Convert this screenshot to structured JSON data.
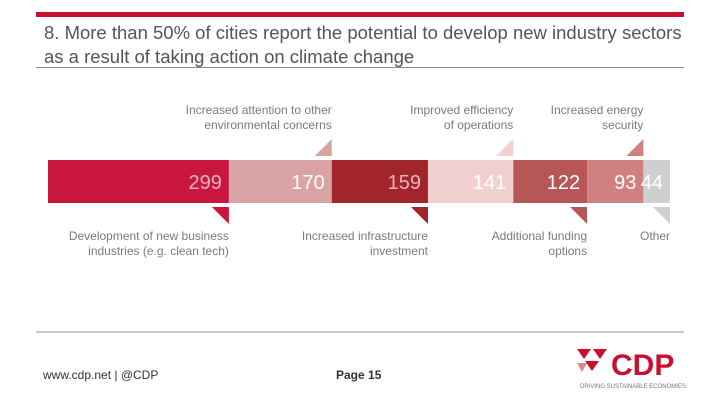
{
  "slide": {
    "title": "8. More than 50% of cities report the potential to develop new industry sectors as a result of taking action on climate change",
    "footer_left": "www.cdp.net | @CDP",
    "page_label": "Page 15",
    "logo": {
      "text": "CDP",
      "tagline": "DRIVING SUSTAINABLE ECONOMIES"
    }
  },
  "colors": {
    "brand": "#c8102e",
    "label": "#7a7a7a",
    "rule": "#c9c9c9"
  },
  "chart_data": {
    "type": "bar",
    "orientation": "horizontal-stacked",
    "categories": [
      "Development of new business industries (e.g. clean tech)",
      "Increased attention to other environmental concerns",
      "Increased infrastructure investment",
      "Improved efficiency of operations",
      "Additional funding options",
      "Increased energy security",
      "Other"
    ],
    "label_lines": [
      [
        "Development of new business",
        "industries (e.g. clean tech)"
      ],
      [
        "Increased attention to other",
        "environmental concerns"
      ],
      [
        "Increased infrastructure",
        "investment"
      ],
      [
        "Improved efficiency",
        "of operations"
      ],
      [
        "Additional funding",
        "options"
      ],
      [
        "Increased energy",
        "security"
      ],
      [
        "Other"
      ]
    ],
    "label_position": [
      "below",
      "above",
      "below",
      "above",
      "below",
      "above",
      "below"
    ],
    "values": [
      299,
      170,
      159,
      141,
      122,
      93,
      44
    ],
    "colors": [
      "#c8163f",
      "#d9a3a3",
      "#a3252c",
      "#f3d0d0",
      "#b65656",
      "#d08080",
      "#cfcfcf"
    ],
    "value_text_colors": [
      "#e8b4bc",
      "#ffffff",
      "#e8b4bc",
      "#ffffff",
      "#ffffff",
      "#ffffff",
      "#ffffff"
    ]
  }
}
